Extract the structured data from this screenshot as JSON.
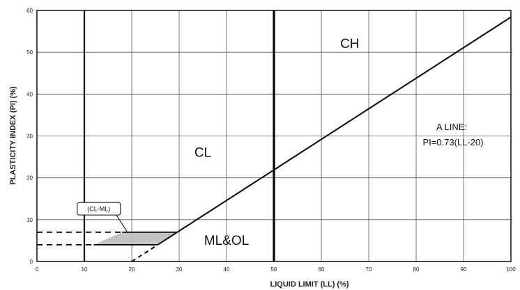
{
  "chart_data": {
    "type": "line",
    "title": "",
    "xlabel": "LIQUID LIMIT (LL) (%)",
    "ylabel": "PLASTICITY INDEX (PI) (%)",
    "xlim": [
      0,
      100
    ],
    "ylim": [
      0,
      60
    ],
    "x_ticks": [
      0,
      10,
      20,
      30,
      40,
      50,
      60,
      70,
      80,
      90,
      100
    ],
    "y_ticks": [
      0,
      10,
      20,
      30,
      40,
      50,
      60
    ],
    "grid": true,
    "series": [
      {
        "name": "A LINE",
        "style": "solid",
        "x": [
          25.5,
          100
        ],
        "y": [
          4,
          58.4
        ]
      },
      {
        "name": "",
        "style": "dashed",
        "x": [
          20,
          25.5
        ],
        "y": [
          0,
          4
        ]
      }
    ],
    "vertical_lines": [
      {
        "x": 10,
        "emphasis": "medium"
      },
      {
        "x": 50,
        "emphasis": "strong"
      }
    ],
    "dashed_horizontals": [
      {
        "y": 7,
        "x_from": 0,
        "x_to": 18
      },
      {
        "y": 4,
        "x_from": 0,
        "x_to": 12
      }
    ],
    "shaded_zone": {
      "label": "(CL-ML)",
      "y_range": [
        4,
        7
      ]
    },
    "region_labels": [
      {
        "text": "CH",
        "x": 66,
        "y": 51
      },
      {
        "text": "CL",
        "x": 35,
        "y": 25
      },
      {
        "text": "ML&OL",
        "x": 40,
        "y": 4
      }
    ],
    "annotation": {
      "line1": "A LINE:",
      "line2": "PI=0.73(LL-20)"
    }
  }
}
